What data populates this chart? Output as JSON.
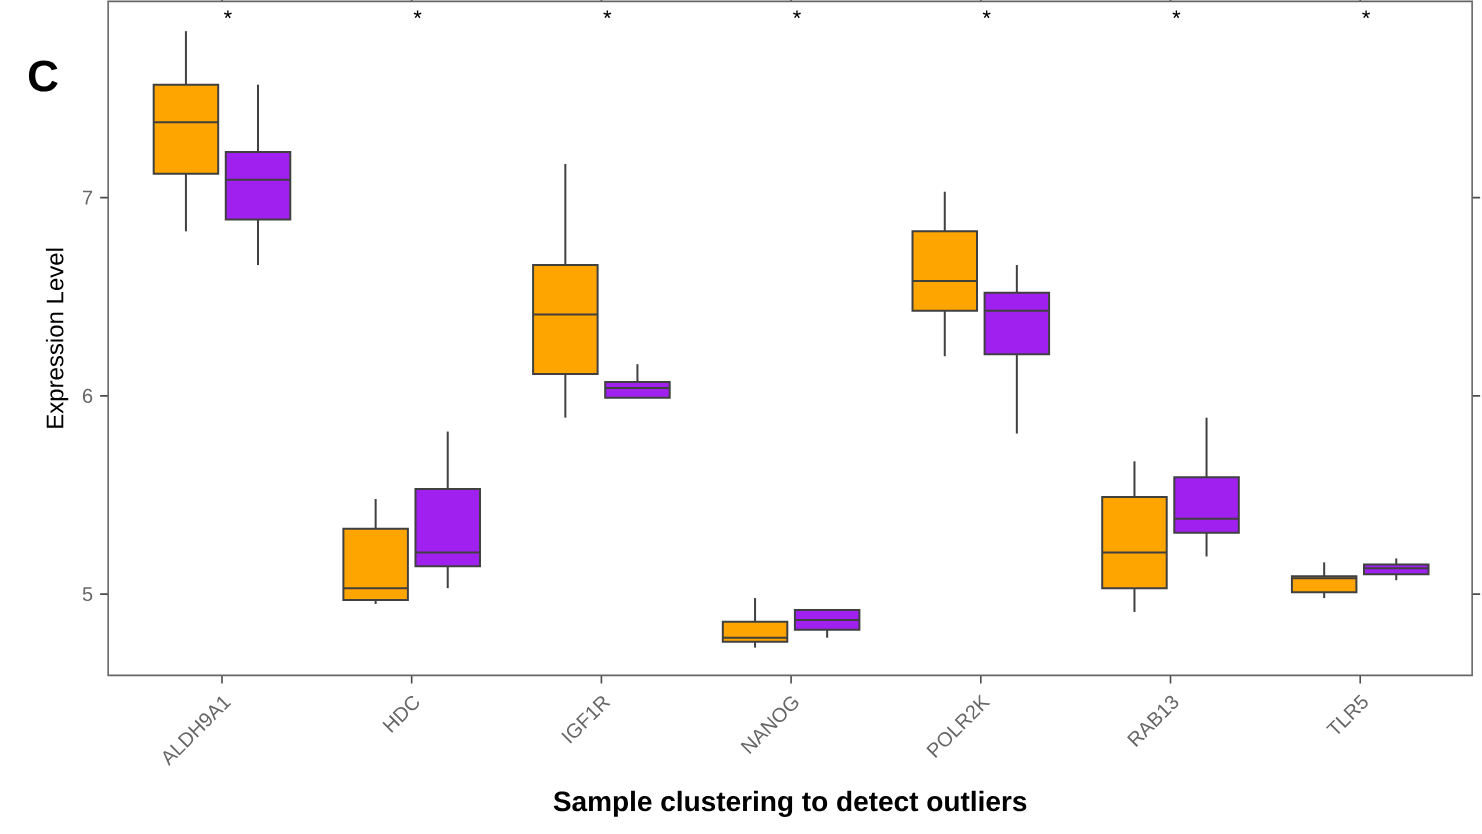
{
  "chart_data": {
    "type": "box",
    "xlabel": "Sample clustering to detect outliers",
    "ylabel": "Expression Level",
    "categories": [
      "ALDH9A1",
      "HDC",
      "IGF1R",
      "NANOG",
      "POLR2K",
      "RAB13",
      "TLR5"
    ],
    "ylim": [
      4.59,
      7.99
    ],
    "yticks": [
      5,
      6,
      7
    ],
    "series": [
      {
        "color": "#ffa500",
        "boxes": [
          {
            "low": 6.83,
            "q1": 7.12,
            "median": 7.38,
            "q3": 7.57,
            "high": 7.84
          },
          {
            "low": 4.95,
            "q1": 4.97,
            "median": 5.03,
            "q3": 5.33,
            "high": 5.48
          },
          {
            "low": 5.89,
            "q1": 6.11,
            "median": 6.41,
            "q3": 6.66,
            "high": 7.17
          },
          {
            "low": 4.73,
            "q1": 4.76,
            "median": 4.78,
            "q3": 4.86,
            "high": 4.98
          },
          {
            "low": 6.2,
            "q1": 6.43,
            "median": 6.58,
            "q3": 6.83,
            "high": 7.03
          },
          {
            "low": 4.91,
            "q1": 5.03,
            "median": 5.21,
            "q3": 5.49,
            "high": 5.67
          },
          {
            "low": 4.98,
            "q1": 5.01,
            "median": 5.08,
            "q3": 5.09,
            "high": 5.16
          }
        ]
      },
      {
        "color": "#a020f0",
        "boxes": [
          {
            "low": 6.66,
            "q1": 6.89,
            "median": 7.09,
            "q3": 7.23,
            "high": 7.57
          },
          {
            "low": 5.03,
            "q1": 5.14,
            "median": 5.21,
            "q3": 5.53,
            "high": 5.82
          },
          {
            "low": 5.99,
            "q1": 5.99,
            "median": 6.04,
            "q3": 6.07,
            "high": 6.16
          },
          {
            "low": 4.78,
            "q1": 4.82,
            "median": 4.87,
            "q3": 4.92,
            "high": 4.92
          },
          {
            "low": 5.81,
            "q1": 6.21,
            "median": 6.43,
            "q3": 6.52,
            "high": 6.66
          },
          {
            "low": 5.19,
            "q1": 5.31,
            "median": 5.38,
            "q3": 5.59,
            "high": 5.89
          },
          {
            "low": 5.07,
            "q1": 5.1,
            "median": 5.13,
            "q3": 5.15,
            "high": 5.18
          }
        ]
      }
    ],
    "annotations": [
      "C",
      "*",
      "*",
      "*",
      "*",
      "*",
      "*",
      "*"
    ]
  }
}
